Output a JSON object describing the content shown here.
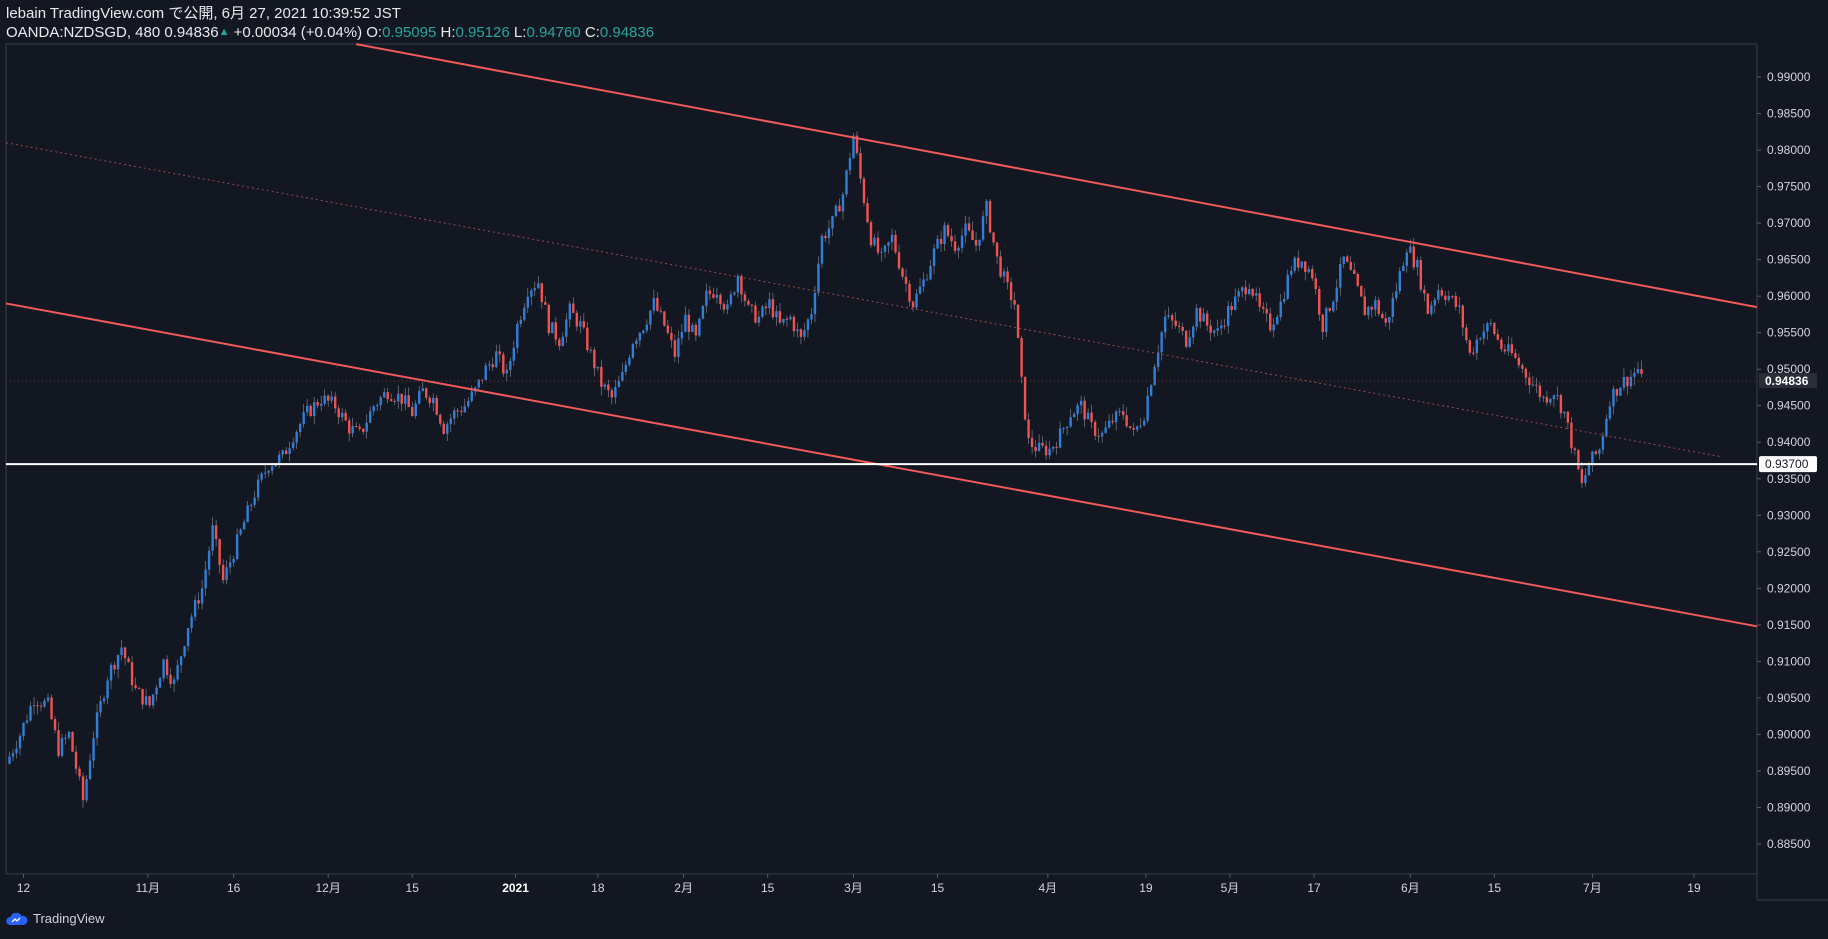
{
  "header": {
    "line1": "lebain TradingView.com で公開, 6月 27, 2021 10:39:52 JST",
    "symbol_prefix": "OANDA:NZDSGD, 480 0.94836",
    "up_arrow": "▲",
    "change": "+0.00034 (+0.04%)",
    "o_label": "O:",
    "o_value": "0.95095",
    "h_label": "H:",
    "h_value": "0.95126",
    "l_label": "L:",
    "l_value": "0.94760",
    "c_label": "C:",
    "c_value": "0.94836"
  },
  "footer": {
    "brand": "TradingView"
  },
  "colors": {
    "background": "#131722",
    "up": "#2f7fd8",
    "down": "#ef5350",
    "channel": "#f05a58",
    "support": "#ffffff"
  },
  "chart_data": {
    "type": "candlestick",
    "symbol": "OANDA:NZDSGD",
    "timeframe": "480",
    "y_axis": {
      "min": 0.8825,
      "max": 0.9935,
      "ticks": [
        "0.99000",
        "0.98500",
        "0.98000",
        "0.97500",
        "0.97000",
        "0.96500",
        "0.96000",
        "0.95500",
        "0.95000",
        "0.94500",
        "0.94000",
        "0.93500",
        "0.93000",
        "0.92500",
        "0.92000",
        "0.91500",
        "0.91000",
        "0.90500",
        "0.90000",
        "0.89500",
        "0.89000",
        "0.88500"
      ]
    },
    "x_axis": {
      "start": 0,
      "end": 1000,
      "ticks": [
        {
          "label": "12",
          "pos": 10
        },
        {
          "label": "11月",
          "pos": 81
        },
        {
          "label": "16",
          "pos": 130
        },
        {
          "label": "12月",
          "pos": 184
        },
        {
          "label": "15",
          "pos": 232
        },
        {
          "label": "2021",
          "pos": 291,
          "bold": true
        },
        {
          "label": "18",
          "pos": 338
        },
        {
          "label": "2月",
          "pos": 387
        },
        {
          "label": "15",
          "pos": 435
        },
        {
          "label": "3月",
          "pos": 484
        },
        {
          "label": "15",
          "pos": 532
        },
        {
          "label": "4月",
          "pos": 595
        },
        {
          "label": "19",
          "pos": 651
        },
        {
          "label": "5月",
          "pos": 699
        },
        {
          "label": "17",
          "pos": 747
        },
        {
          "label": "6月",
          "pos": 802
        },
        {
          "label": "15",
          "pos": 850
        },
        {
          "label": "7月",
          "pos": 906
        },
        {
          "label": "19",
          "pos": 964
        }
      ]
    },
    "price_path": [
      [
        0,
        0.896
      ],
      [
        8,
        0.9
      ],
      [
        16,
        0.905
      ],
      [
        24,
        0.904
      ],
      [
        30,
        0.898
      ],
      [
        36,
        0.9
      ],
      [
        44,
        0.891
      ],
      [
        50,
        0.9
      ],
      [
        58,
        0.908
      ],
      [
        66,
        0.912
      ],
      [
        74,
        0.906
      ],
      [
        82,
        0.904
      ],
      [
        90,
        0.91
      ],
      [
        96,
        0.907
      ],
      [
        104,
        0.915
      ],
      [
        112,
        0.92
      ],
      [
        118,
        0.928
      ],
      [
        124,
        0.921
      ],
      [
        130,
        0.925
      ],
      [
        136,
        0.929
      ],
      [
        142,
        0.933
      ],
      [
        150,
        0.937
      ],
      [
        158,
        0.938
      ],
      [
        164,
        0.941
      ],
      [
        172,
        0.944
      ],
      [
        180,
        0.946
      ],
      [
        188,
        0.945
      ],
      [
        196,
        0.942
      ],
      [
        202,
        0.941
      ],
      [
        210,
        0.945
      ],
      [
        218,
        0.947
      ],
      [
        226,
        0.946
      ],
      [
        232,
        0.944
      ],
      [
        238,
        0.947
      ],
      [
        244,
        0.946
      ],
      [
        250,
        0.942
      ],
      [
        256,
        0.944
      ],
      [
        262,
        0.945
      ],
      [
        268,
        0.947
      ],
      [
        274,
        0.95
      ],
      [
        280,
        0.952
      ],
      [
        286,
        0.949
      ],
      [
        292,
        0.956
      ],
      [
        298,
        0.961
      ],
      [
        304,
        0.962
      ],
      [
        310,
        0.956
      ],
      [
        316,
        0.954
      ],
      [
        322,
        0.958
      ],
      [
        328,
        0.956
      ],
      [
        334,
        0.952
      ],
      [
        340,
        0.948
      ],
      [
        346,
        0.946
      ],
      [
        352,
        0.949
      ],
      [
        358,
        0.954
      ],
      [
        364,
        0.956
      ],
      [
        370,
        0.959
      ],
      [
        376,
        0.956
      ],
      [
        382,
        0.952
      ],
      [
        388,
        0.957
      ],
      [
        394,
        0.954
      ],
      [
        400,
        0.96
      ],
      [
        406,
        0.961
      ],
      [
        412,
        0.958
      ],
      [
        418,
        0.963
      ],
      [
        424,
        0.958
      ],
      [
        430,
        0.957
      ],
      [
        436,
        0.959
      ],
      [
        442,
        0.956
      ],
      [
        448,
        0.957
      ],
      [
        454,
        0.954
      ],
      [
        460,
        0.958
      ],
      [
        466,
        0.968
      ],
      [
        472,
        0.97
      ],
      [
        478,
        0.974
      ],
      [
        484,
        0.982
      ],
      [
        488,
        0.976
      ],
      [
        494,
        0.968
      ],
      [
        500,
        0.965
      ],
      [
        506,
        0.968
      ],
      [
        512,
        0.963
      ],
      [
        518,
        0.959
      ],
      [
        524,
        0.962
      ],
      [
        530,
        0.966
      ],
      [
        536,
        0.969
      ],
      [
        542,
        0.967
      ],
      [
        548,
        0.969
      ],
      [
        554,
        0.967
      ],
      [
        560,
        0.972
      ],
      [
        566,
        0.965
      ],
      [
        572,
        0.961
      ],
      [
        576,
        0.959
      ],
      [
        580,
        0.948
      ],
      [
        584,
        0.94
      ],
      [
        590,
        0.939
      ],
      [
        596,
        0.939
      ],
      [
        602,
        0.941
      ],
      [
        608,
        0.944
      ],
      [
        614,
        0.945
      ],
      [
        620,
        0.942
      ],
      [
        626,
        0.941
      ],
      [
        632,
        0.943
      ],
      [
        638,
        0.944
      ],
      [
        644,
        0.941
      ],
      [
        650,
        0.944
      ],
      [
        656,
        0.951
      ],
      [
        662,
        0.957
      ],
      [
        668,
        0.956
      ],
      [
        674,
        0.954
      ],
      [
        680,
        0.958
      ],
      [
        686,
        0.956
      ],
      [
        692,
        0.955
      ],
      [
        698,
        0.958
      ],
      [
        704,
        0.96
      ],
      [
        710,
        0.962
      ],
      [
        716,
        0.958
      ],
      [
        722,
        0.956
      ],
      [
        728,
        0.959
      ],
      [
        734,
        0.964
      ],
      [
        740,
        0.965
      ],
      [
        746,
        0.963
      ],
      [
        752,
        0.956
      ],
      [
        758,
        0.96
      ],
      [
        764,
        0.965
      ],
      [
        770,
        0.962
      ],
      [
        776,
        0.958
      ],
      [
        782,
        0.959
      ],
      [
        788,
        0.956
      ],
      [
        794,
        0.961
      ],
      [
        800,
        0.967
      ],
      [
        806,
        0.964
      ],
      [
        812,
        0.958
      ],
      [
        818,
        0.961
      ],
      [
        824,
        0.96
      ],
      [
        830,
        0.958
      ],
      [
        836,
        0.952
      ],
      [
        842,
        0.955
      ],
      [
        848,
        0.956
      ],
      [
        854,
        0.953
      ],
      [
        860,
        0.952
      ],
      [
        866,
        0.95
      ],
      [
        872,
        0.948
      ],
      [
        878,
        0.946
      ],
      [
        884,
        0.947
      ],
      [
        890,
        0.944
      ],
      [
        896,
        0.938
      ],
      [
        900,
        0.934
      ],
      [
        904,
        0.937
      ],
      [
        910,
        0.939
      ],
      [
        916,
        0.946
      ],
      [
        922,
        0.948
      ],
      [
        928,
        0.949
      ],
      [
        932,
        0.95
      ],
      [
        934,
        0.9484
      ]
    ],
    "close_value": 0.94836,
    "close_label": "0.94836",
    "support_value": 0.937,
    "support_label": "0.93700",
    "channel_upper": {
      "x1": 200,
      "y1": 0.9945,
      "x2": 1000,
      "y2": 0.9585
    },
    "channel_lower": {
      "x1": 0,
      "y1": 0.959,
      "x2": 1000,
      "y2": 0.9148
    },
    "channel_mid": {
      "x1": 0,
      "y1": 0.981,
      "x2": 980,
      "y2": 0.938
    }
  }
}
